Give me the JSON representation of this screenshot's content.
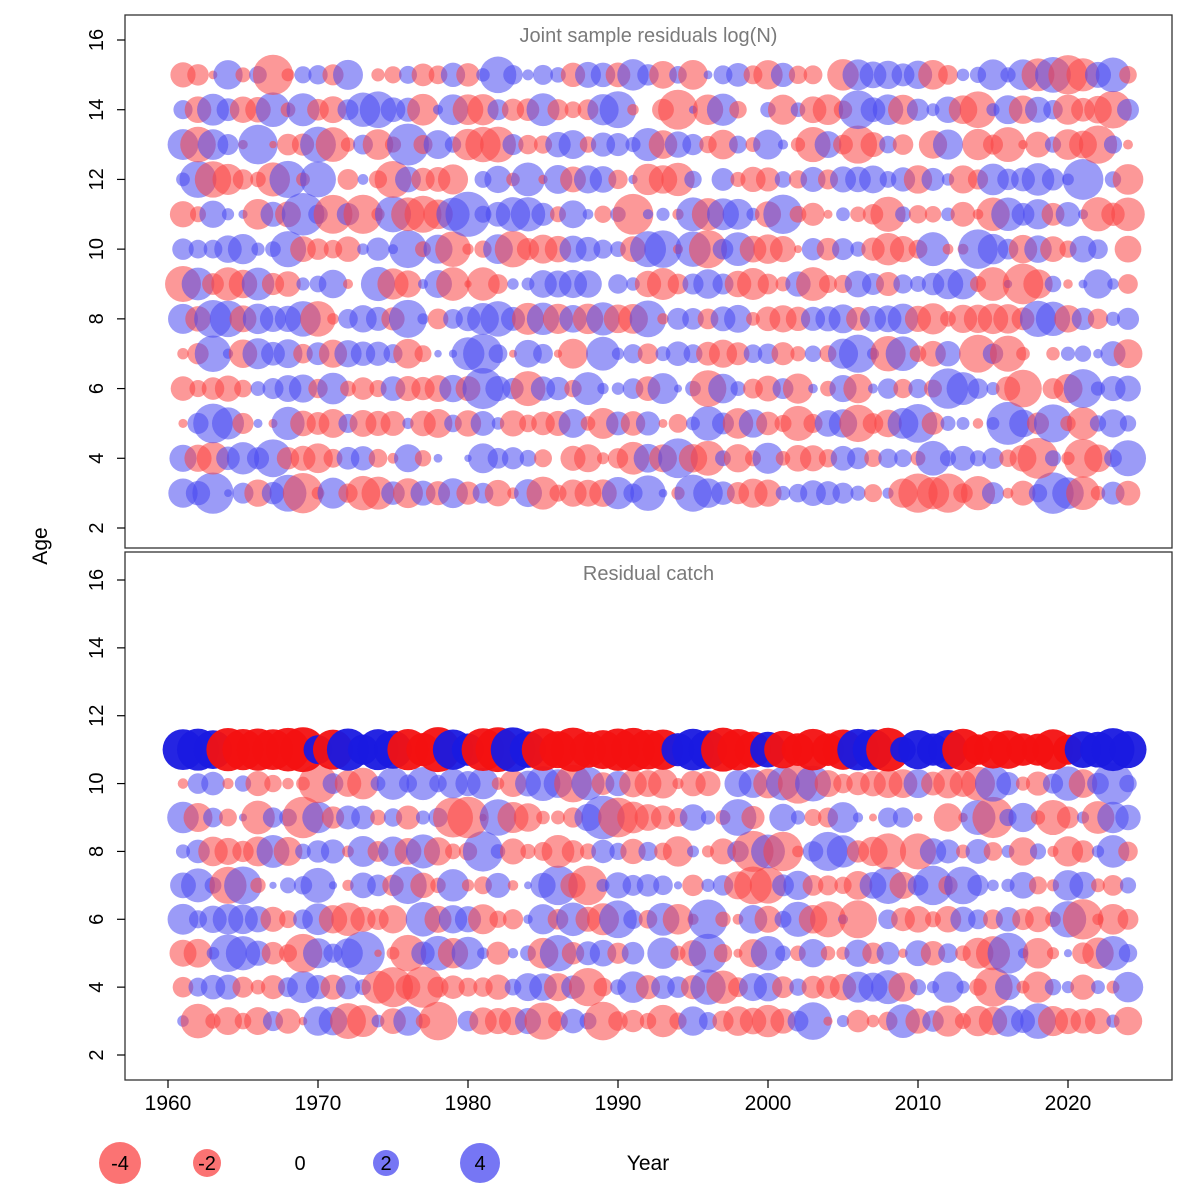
{
  "chart_data": {
    "type": "bubble",
    "title": "",
    "xlabel": "Year",
    "ylabel": "Age",
    "x_ticks": [
      1960,
      1970,
      1980,
      1990,
      2000,
      2010,
      2020
    ],
    "y_ticks": [
      2,
      4,
      6,
      8,
      10,
      12,
      14,
      16
    ],
    "xlim": [
      1957,
      2027
    ],
    "ylim": [
      1.5,
      16.5
    ],
    "grid": false,
    "legend_position": "bottom",
    "legend": {
      "values": [
        -4,
        -2,
        0,
        2,
        4
      ],
      "labels": [
        "-4",
        "-2",
        "0",
        "2",
        "4"
      ],
      "negative_color": "#fa4444",
      "positive_color": "#4848f0"
    },
    "panels": [
      {
        "title": "Joint sample residuals log(N)",
        "ages": [
          3,
          4,
          5,
          6,
          7,
          8,
          9,
          10,
          11,
          12,
          13,
          14,
          15
        ],
        "year_start": 1961,
        "year_end": 2024,
        "value_range": [
          -4,
          4
        ],
        "style": "translucent"
      },
      {
        "title": "Residual catch",
        "ages": [
          3,
          4,
          5,
          6,
          7,
          8,
          9,
          10,
          11
        ],
        "plus_group_age": 11,
        "year_start": 1961,
        "year_end": 2024,
        "value_range": [
          -4,
          4
        ],
        "style": "translucent; plus-group row saturated"
      }
    ],
    "colors": {
      "negative_fill": "#fa4444",
      "positive_fill": "#4848f0",
      "bubble_opacity": 0.55,
      "plus_negative_fill": "#f31111",
      "plus_positive_fill": "#1919e0",
      "plus_opacity": 0.95,
      "panel_border": "#333333",
      "title_text": "#7a7a7a",
      "axis_text": "#000000"
    },
    "generation": {
      "seed": 20240615,
      "note_scale": "radius ~ sqrt(|residual|)"
    }
  }
}
